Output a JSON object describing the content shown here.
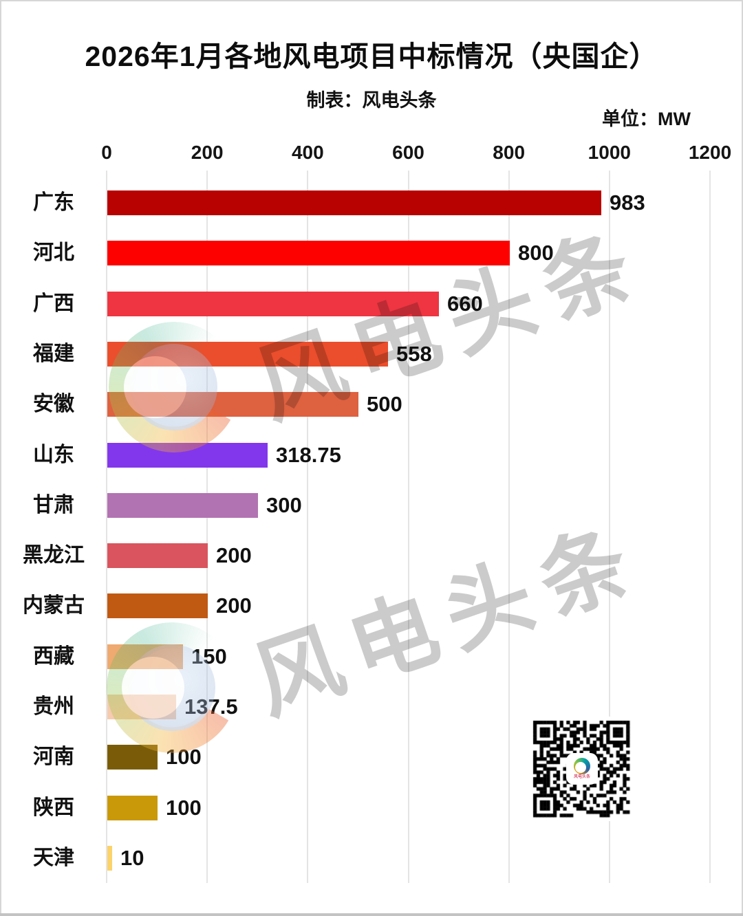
{
  "page": {
    "title": "2026年1月各地风电项目中标情况（央国企）",
    "subtitle": "制表：风电头条",
    "unit_label": "单位：MW"
  },
  "watermark": {
    "brand_text": "风电头条",
    "qr_caption": "风电头条",
    "text_color": "#cbcbcb"
  },
  "chart_data": {
    "type": "bar",
    "orientation": "horizontal",
    "title": "2026年1月各地风电项目中标情况（央国企）",
    "subtitle": "制表：风电头条",
    "unit": "MW",
    "xlim": [
      0,
      1200
    ],
    "x_ticks": [
      0,
      200,
      400,
      600,
      800,
      1000,
      1200
    ],
    "grid": true,
    "legend": false,
    "value_labels": true,
    "categories": [
      "广东",
      "河北",
      "广西",
      "福建",
      "安徽",
      "山东",
      "甘肃",
      "黑龙江",
      "内蒙古",
      "西藏",
      "贵州",
      "河南",
      "陕西",
      "天津"
    ],
    "values": [
      983,
      800,
      660,
      558,
      500,
      318.75,
      300,
      200,
      200,
      150,
      137.5,
      100,
      100,
      10
    ],
    "bar_colors": [
      "#b80101",
      "#fd0000",
      "#ee3541",
      "#eb4e2c",
      "#de6140",
      "#8337ec",
      "#b273b2",
      "#d9545e",
      "#c05912",
      "#eeaa70",
      "#f6cbb0",
      "#7a5c08",
      "#c9990a",
      "#fbd36a"
    ]
  }
}
